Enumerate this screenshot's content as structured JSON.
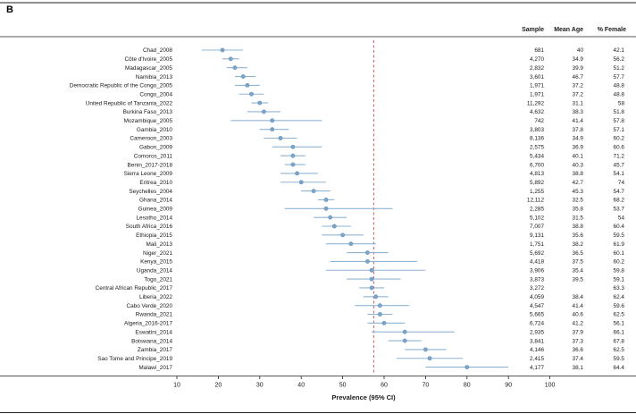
{
  "panel_label": "B",
  "colors": {
    "point_fill": "#7ca6cb",
    "point_stroke": "#638fb6",
    "ci_line": "#8fb4d3",
    "reference_line": "#cf5b67",
    "rule": "#222222",
    "text": "#1a1a1a"
  },
  "chart_data": {
    "type": "forest",
    "xlabel": "Prevalence (95% CI)",
    "xlim": [
      10,
      100
    ],
    "xticks": [
      10,
      20,
      30,
      40,
      50,
      60,
      70,
      80,
      90,
      100
    ],
    "reference_line": 57.5,
    "grid": false,
    "columns": [
      "Sample",
      "Mean Age",
      "% Female"
    ],
    "rows": [
      {
        "label": "Chad_2008",
        "sample": "681",
        "mean_age": "40",
        "female": "42.1",
        "est": 21,
        "lo": 16,
        "hi": 26
      },
      {
        "label": "Côte d'Ivoire_2005",
        "sample": "4,270",
        "mean_age": "34.9",
        "female": "56.2",
        "est": 23,
        "lo": 21,
        "hi": 25
      },
      {
        "label": "Madagascar_2005",
        "sample": "2,832",
        "mean_age": "39.9",
        "female": "51.2",
        "est": 24,
        "lo": 22,
        "hi": 27
      },
      {
        "label": "Namibia_2013",
        "sample": "3,601",
        "mean_age": "46.7",
        "female": "57.7",
        "est": 26,
        "lo": 24,
        "hi": 29
      },
      {
        "label": "Democratic Republic of the Congo_2005",
        "sample": "1,971",
        "mean_age": "37.2",
        "female": "48.8",
        "est": 27,
        "lo": 24,
        "hi": 30
      },
      {
        "label": "Congo_2004",
        "sample": "1,971",
        "mean_age": "37.2",
        "female": "48.8",
        "est": 28,
        "lo": 25,
        "hi": 31
      },
      {
        "label": "United Republic of Tanzania_2022",
        "sample": "11,292",
        "mean_age": "31.1",
        "female": "58",
        "est": 30,
        "lo": 28,
        "hi": 32
      },
      {
        "label": "Burkina Faso_2013",
        "sample": "4,632",
        "mean_age": "38.3",
        "female": "51.8",
        "est": 31,
        "lo": 27,
        "hi": 35
      },
      {
        "label": "Mozambique_2005",
        "sample": "742",
        "mean_age": "41.4",
        "female": "57.8",
        "est": 33,
        "lo": 23,
        "hi": 45
      },
      {
        "label": "Gambia_2010",
        "sample": "3,803",
        "mean_age": "37.8",
        "female": "57.1",
        "est": 33,
        "lo": 30,
        "hi": 37
      },
      {
        "label": "Cameroon_2003",
        "sample": "8,136",
        "mean_age": "34.9",
        "female": "60.2",
        "est": 35,
        "lo": 31,
        "hi": 39
      },
      {
        "label": "Gabon_2009",
        "sample": "2,575",
        "mean_age": "36.9",
        "female": "60.6",
        "est": 38,
        "lo": 33,
        "hi": 45
      },
      {
        "label": "Comoros_2011",
        "sample": "5,434",
        "mean_age": "40.1",
        "female": "71.2",
        "est": 38,
        "lo": 35,
        "hi": 41
      },
      {
        "label": "Benin_2017-2018",
        "sample": "6,700",
        "mean_age": "40.3",
        "female": "45.7",
        "est": 38,
        "lo": 36,
        "hi": 41
      },
      {
        "label": "Sierra Leone_2009",
        "sample": "4,813",
        "mean_age": "38.8",
        "female": "54.1",
        "est": 39,
        "lo": 35,
        "hi": 44
      },
      {
        "label": "Eritrea_2010",
        "sample": "5,892",
        "mean_age": "42.7",
        "female": "74",
        "est": 40,
        "lo": 35,
        "hi": 46
      },
      {
        "label": "Seychelles_2004",
        "sample": "1,255",
        "mean_age": "45.3",
        "female": "54.7",
        "est": 43,
        "lo": 40,
        "hi": 47
      },
      {
        "label": "Ghana_2014",
        "sample": "12,112",
        "mean_age": "32.5",
        "female": "68.2",
        "est": 46,
        "lo": 44,
        "hi": 48
      },
      {
        "label": "Guinea_2009",
        "sample": "2,285",
        "mean_age": "35.8",
        "female": "53.7",
        "est": 46,
        "lo": 36,
        "hi": 62
      },
      {
        "label": "Lesotho_2014",
        "sample": "5,102",
        "mean_age": "31.5",
        "female": "54",
        "est": 47,
        "lo": 43,
        "hi": 51
      },
      {
        "label": "South Africa_2016",
        "sample": "7,007",
        "mean_age": "38.8",
        "female": "60.4",
        "est": 48,
        "lo": 45,
        "hi": 52
      },
      {
        "label": "Ethiopia_2015",
        "sample": "9,131",
        "mean_age": "35.6",
        "female": "59.5",
        "est": 50,
        "lo": 45,
        "hi": 55
      },
      {
        "label": "Mali_2013",
        "sample": "1,751",
        "mean_age": "38.2",
        "female": "61.9",
        "est": 52,
        "lo": 46,
        "hi": 58
      },
      {
        "label": "Niger_2021",
        "sample": "5,692",
        "mean_age": "36.5",
        "female": "60.1",
        "est": 56,
        "lo": 51,
        "hi": 61
      },
      {
        "label": "Kenya_2015",
        "sample": "4,418",
        "mean_age": "37.5",
        "female": "60.2",
        "est": 56,
        "lo": 47,
        "hi": 68
      },
      {
        "label": "Uganda_2014",
        "sample": "3,906",
        "mean_age": "35.4",
        "female": "59.8",
        "est": 57,
        "lo": 46,
        "hi": 70
      },
      {
        "label": "Togo_2021",
        "sample": "3,873",
        "mean_age": "39.5",
        "female": "59.1",
        "est": 57,
        "lo": 51,
        "hi": 64
      },
      {
        "label": "Central African Republic_2017",
        "sample": "3,272",
        "mean_age": "",
        "female": "63.3",
        "est": 57,
        "lo": 54,
        "hi": 60
      },
      {
        "label": "Liberia_2022",
        "sample": "4,059",
        "mean_age": "38.4",
        "female": "62.4",
        "est": 58,
        "lo": 55,
        "hi": 61
      },
      {
        "label": "Cabo Verde_2020",
        "sample": "4,547",
        "mean_age": "41.4",
        "female": "59.6",
        "est": 59,
        "lo": 53,
        "hi": 66
      },
      {
        "label": "Rwanda_2021",
        "sample": "5,665",
        "mean_age": "40.6",
        "female": "62.5",
        "est": 59,
        "lo": 56,
        "hi": 62
      },
      {
        "label": "Algeria_2016-2017",
        "sample": "6,724",
        "mean_age": "41.2",
        "female": "56.1",
        "est": 60,
        "lo": 56,
        "hi": 65
      },
      {
        "label": "Eswatini_2014",
        "sample": "2,935",
        "mean_age": "37.9",
        "female": "66.1",
        "est": 65,
        "lo": 57,
        "hi": 77
      },
      {
        "label": "Botswana_2014",
        "sample": "3,841",
        "mean_age": "37.3",
        "female": "67.8",
        "est": 65,
        "lo": 61,
        "hi": 69
      },
      {
        "label": "Zambia_2017",
        "sample": "4,146",
        "mean_age": "36.6",
        "female": "62.5",
        "est": 70,
        "lo": 65,
        "hi": 75
      },
      {
        "label": "Sao Tome and Principe_2019",
        "sample": "2,415",
        "mean_age": "37.4",
        "female": "59.5",
        "est": 71,
        "lo": 63,
        "hi": 79
      },
      {
        "label": "Malawi_2017",
        "sample": "4,177",
        "mean_age": "38.1",
        "female": "64.4",
        "est": 80,
        "lo": 70,
        "hi": 90
      }
    ]
  }
}
